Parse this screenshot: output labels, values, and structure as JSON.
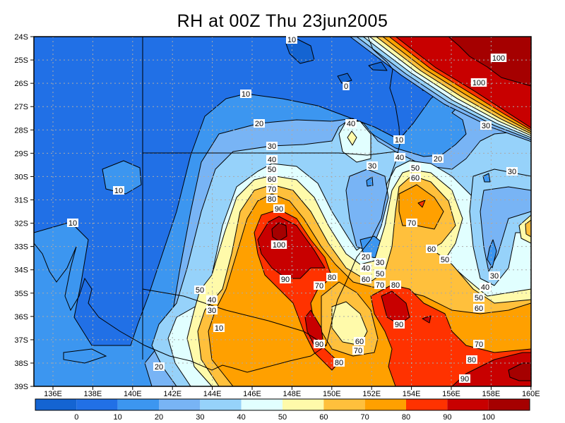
{
  "title": "RH at 00Z Thu 23jun2005",
  "map": {
    "lat_labels": [
      "24S",
      "25S",
      "26S",
      "27S",
      "28S",
      "29S",
      "30S",
      "31S",
      "32S",
      "33S",
      "34S",
      "35S",
      "36S",
      "37S",
      "38S",
      "39S"
    ],
    "lon_labels": [
      "136E",
      "138E",
      "140E",
      "142E",
      "144E",
      "146E",
      "148E",
      "150E",
      "152E",
      "154E",
      "156E",
      "158E",
      "160E"
    ],
    "contour_labels": [
      "10",
      "0",
      "10",
      "20",
      "40",
      "10",
      "30",
      "20",
      "100",
      "100",
      "30",
      "40",
      "30",
      "30",
      "50",
      "60",
      "40",
      "50",
      "60",
      "70",
      "80",
      "90",
      "10",
      "10",
      "70",
      "100",
      "60",
      "50",
      "20",
      "30",
      "40",
      "50",
      "60",
      "70",
      "80",
      "90",
      "80",
      "70",
      "30",
      "40",
      "50",
      "60",
      "50",
      "40",
      "30",
      "10",
      "90",
      "60",
      "90",
      "70",
      "70",
      "80",
      "80",
      "20",
      "90"
    ]
  },
  "colorbar": {
    "labels": [
      "0",
      "10",
      "20",
      "30",
      "40",
      "50",
      "60",
      "70",
      "80",
      "90",
      "100"
    ],
    "colors": [
      "#1464d2",
      "#2170e6",
      "#3c96f0",
      "#78b4f5",
      "#96d2fa",
      "#e1ffff",
      "#fffaaa",
      "#ffc03c",
      "#ffa000",
      "#ff3200",
      "#c80000",
      "#a50000"
    ]
  }
}
